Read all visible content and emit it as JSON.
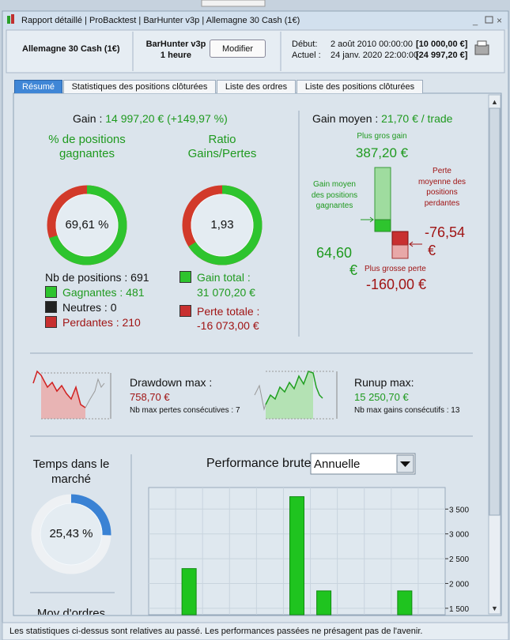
{
  "window": {
    "title_parts": [
      "Rapport détaillé",
      "ProBacktest",
      "BarHunter v3p",
      "Allemagne 30 Cash (1€)"
    ]
  },
  "header": {
    "instrument": "Allemagne 30 Cash (1€)",
    "system": "BarHunter v3p",
    "timeframe": "1 heure",
    "button": "Modifier",
    "start_label": "Début:",
    "start_date": "2 août 2010 00:00:00",
    "start_capital": "[10 000,00 €]",
    "current_label": "Actuel :",
    "current_date": "24 janv. 2020 22:00:00",
    "current_capital": "[24 997,20 €]"
  },
  "tabs": [
    "Résumé",
    "Statistiques des positions clôturées",
    "Liste des ordres",
    "Liste des positions clôturées"
  ],
  "summary": {
    "gain_label": "Gain :",
    "gain_value": "14 997,20 € (+149,97 %)",
    "win_rate_title": "% de positions gagnantes",
    "win_rate": {
      "value": 69.61,
      "label": "69,61 %"
    },
    "ratio_title": "Ratio Gains/Pertes",
    "ratio": {
      "value": 1.93,
      "label": "1,93"
    },
    "positions_total": "Nb de positions : 691",
    "positions_won": "Gagnantes : 481",
    "positions_neutral": "Neutres : 0",
    "positions_lost": "Perdantes : 210",
    "gain_total_label": "Gain total :",
    "gain_total": "31 070,20 €",
    "loss_total_label": "Perte totale :",
    "loss_total": "-16 073,00 €",
    "avg_gain_label": "Gain moyen :",
    "avg_gain": "21,70 € / trade",
    "best_label": "Plus gros gain",
    "best": "387,20 €",
    "avg_win_label": "Gain moyen des positions gagnantes",
    "avg_win": "64,60",
    "avg_win_unit": "€",
    "avg_loss_label": "Perte moyenne des positions perdantes",
    "avg_loss": "-76,54",
    "avg_loss_unit": "€",
    "worst_label": "Plus grosse perte",
    "worst": "-160,00 €",
    "drawdown_label": "Drawdown max :",
    "drawdown": "758,70 €",
    "max_losses": "Nb max pertes consécutives : 7",
    "runup_label": "Runup max:",
    "runup": "15 250,70 €",
    "max_gains": "Nb max gains consécutifs : 13",
    "time_title": "Temps dans le marché",
    "time_in_market": {
      "value": 25.43,
      "label": "25,43 %"
    },
    "orders_title": "Moy d'ordres"
  },
  "chart_data": {
    "type": "bar",
    "title": "Performance brute",
    "period": "Annuelle",
    "categories": [
      null,
      null,
      null,
      null,
      null,
      null,
      null,
      null,
      null,
      null,
      null
    ],
    "values": [
      null,
      2300,
      null,
      null,
      null,
      3750,
      1850,
      null,
      null,
      1850,
      null
    ],
    "color": "#1fc41f",
    "ylim": [
      1370,
      3935
    ],
    "yticks": [
      {
        "value": 1500,
        "label": "1 500"
      },
      {
        "value": 2000,
        "label": "2 000"
      },
      {
        "value": 2500,
        "label": "2 500"
      },
      {
        "value": 3000,
        "label": "3 000"
      },
      {
        "value": 3500,
        "label": "3 500"
      }
    ],
    "grid": true
  },
  "footer": "Les statistiques ci-dessus sont relatives au passé. Les performances passées ne présagent pas de l'avenir."
}
